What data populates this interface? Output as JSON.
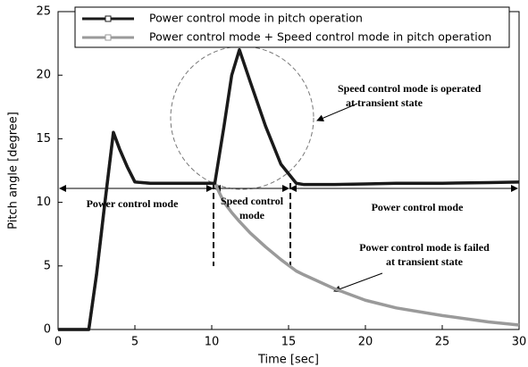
{
  "chart_data": {
    "type": "line",
    "xlabel": "Time [sec]",
    "ylabel": "Pitch angle [degree]",
    "x": [
      0,
      2,
      2.5,
      3,
      3.6,
      4,
      4.5,
      5,
      6,
      8,
      10.2,
      10.8,
      11.3,
      11.8,
      12.5,
      13.5,
      14.5,
      15.5,
      16,
      18,
      20,
      22,
      25,
      28,
      30
    ],
    "series": [
      {
        "name": "Power control mode in pitch operation",
        "color": "#1a1a1a",
        "values": [
          0,
          0,
          4.3,
          9.5,
          15.5,
          14.2,
          12.8,
          11.6,
          11.5,
          11.5,
          11.5,
          16,
          20,
          22,
          19.5,
          16,
          13,
          11.5,
          11.4,
          11.4,
          11.45,
          11.5,
          11.5,
          11.55,
          11.6
        ]
      },
      {
        "name": "Power control mode + Speed control mode in pitch operation",
        "color": "#9a9a9a",
        "values": [
          0,
          0,
          4.3,
          9.5,
          15.5,
          14.2,
          12.8,
          11.6,
          11.5,
          11.5,
          11.5,
          10,
          9.2,
          8.5,
          7.6,
          6.5,
          5.5,
          4.6,
          4.3,
          3.2,
          2.3,
          1.7,
          1.1,
          0.6,
          0.35
        ]
      }
    ],
    "xlim": [
      0,
      30
    ],
    "xticks": [
      0,
      5,
      10,
      15,
      20,
      25,
      30
    ],
    "ylim": [
      0,
      25
    ],
    "yticks": [
      0,
      5,
      10,
      15,
      20,
      25
    ],
    "annotations": [
      "Speed control mode is operated",
      "at transient state",
      "Power control mode",
      "Speed control",
      "mode",
      "Power control mode",
      "Power control mode is failed",
      "at transient state"
    ]
  }
}
